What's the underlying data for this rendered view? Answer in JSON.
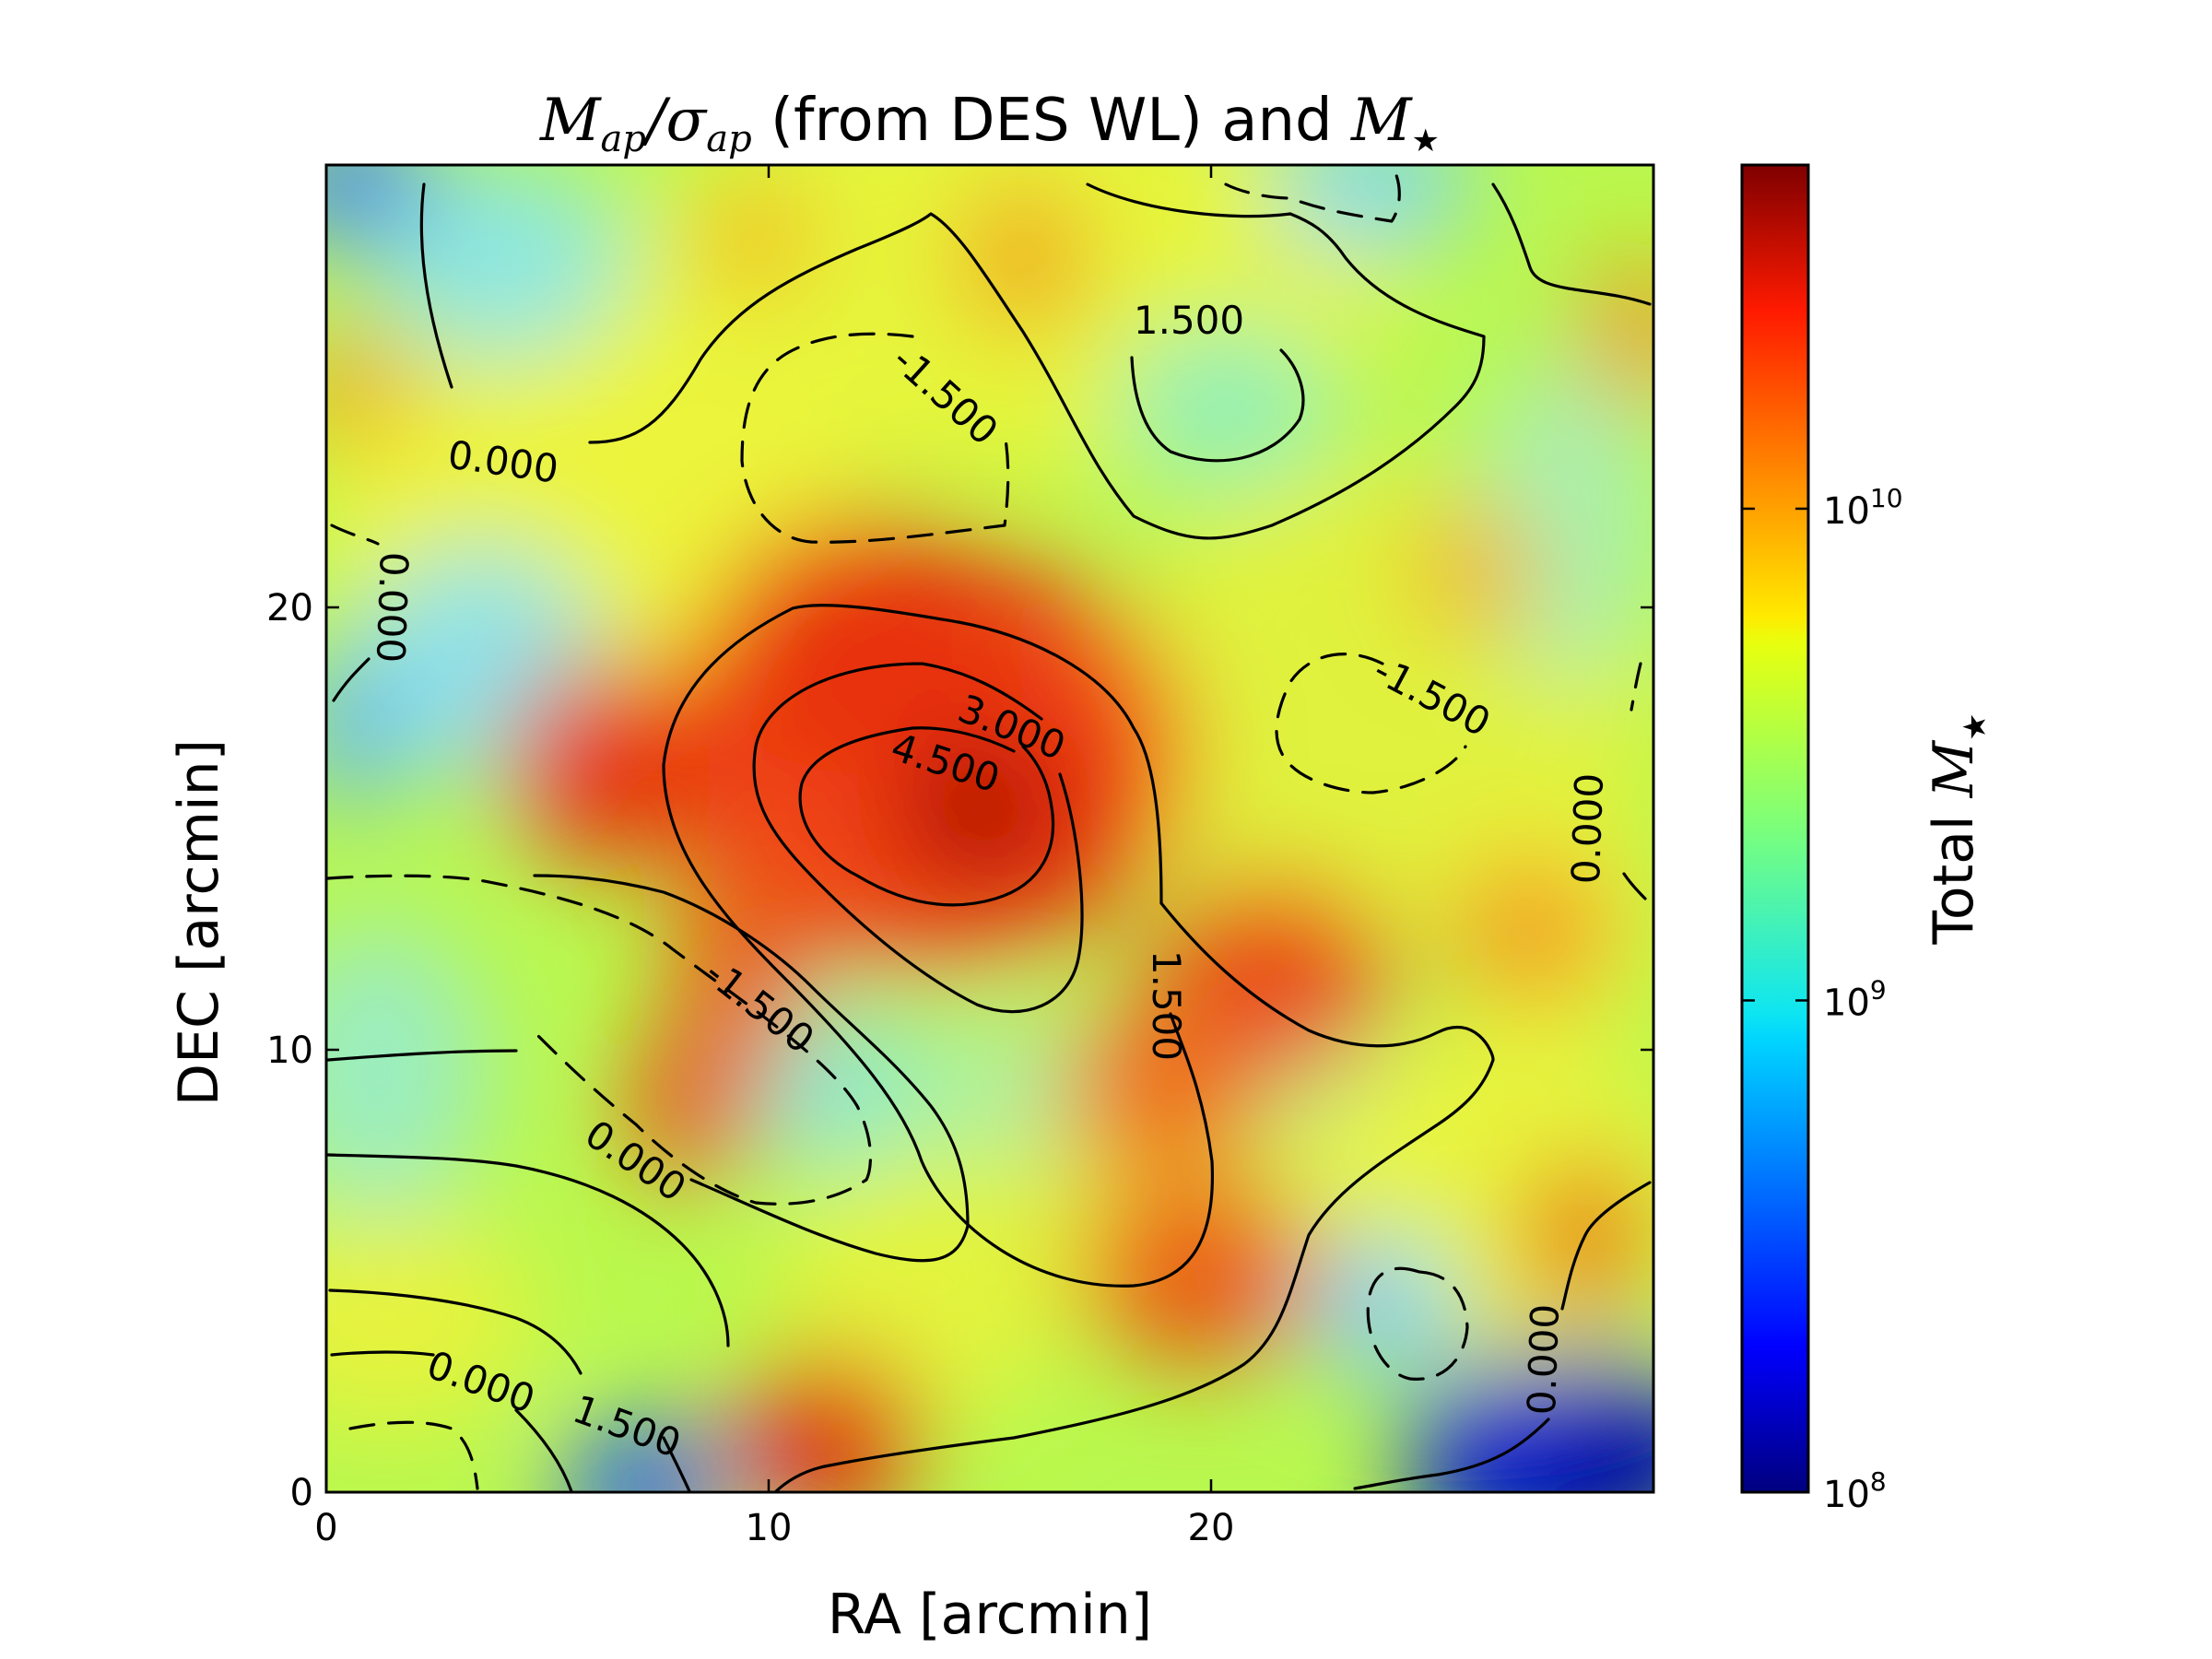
{
  "chart_data": {
    "type": "heatmap",
    "title": {
      "math_prefix_main": "M",
      "math_prefix_sub": "ap",
      "slash": "/",
      "sigma": "σ",
      "sigma_sub": "ap",
      "text": " (from DES WL) and ",
      "math_suffix_main": "M",
      "math_suffix_sub": "★"
    },
    "xlabel": "RA [arcmin]",
    "ylabel": "DEC [arcmin]",
    "xlim": [
      0,
      30
    ],
    "ylim": [
      0,
      30
    ],
    "xticks": [
      0,
      10,
      20
    ],
    "yticks": [
      0,
      10,
      20
    ],
    "colorbar": {
      "label_text": "Total ",
      "label_math_main": "M",
      "label_math_sub": "★",
      "scale": "log",
      "range": [
        100000000,
        50000000000
      ],
      "ticks": [
        {
          "value": 100000000,
          "base": "10",
          "exp": "8"
        },
        {
          "value": 1000000000,
          "base": "10",
          "exp": "9"
        },
        {
          "value": 10000000000,
          "base": "10",
          "exp": "10"
        }
      ],
      "colormap": "jet"
    },
    "heatmap_peaks": [
      {
        "ra": 14.5,
        "dec": 14.8,
        "mstar": 40000000000
      },
      {
        "ra": 12.5,
        "dec": 19.0,
        "mstar": 20000000000
      },
      {
        "ra": 7.0,
        "dec": 16.5,
        "mstar": 20000000000
      },
      {
        "ra": 11.5,
        "dec": 0.5,
        "mstar": 30000000000
      },
      {
        "ra": 22.0,
        "dec": 11.0,
        "mstar": 18000000000
      },
      {
        "ra": 20.0,
        "dec": 4.5,
        "mstar": 15000000000
      },
      {
        "ra": 8.5,
        "dec": 10.0,
        "mstar": 14000000000
      },
      {
        "ra": 29.5,
        "dec": 26.0,
        "mstar": 9000000000
      },
      {
        "ra": 1.0,
        "dec": 24.5,
        "mstar": 8000000000
      },
      {
        "ra": 28.0,
        "dec": 0.5,
        "mstar": 150000000
      },
      {
        "ra": 6.5,
        "dec": 0.3,
        "mstar": 500000000
      },
      {
        "ra": 0.2,
        "dec": 29.5,
        "mstar": 500000000
      }
    ],
    "contour_levels": [
      -1.5,
      0.0,
      1.5,
      3.0,
      4.5
    ],
    "contour_labels": [
      {
        "text": "0.000",
        "ra": 4.0,
        "dec": 23.3,
        "angle": 8
      },
      {
        "text": "0.000",
        "ra": 1.5,
        "dec": 20.0,
        "angle": 92
      },
      {
        "text": "-1.500",
        "ra": 14.0,
        "dec": 24.8,
        "angle": 42
      },
      {
        "text": "1.500",
        "ra": 19.5,
        "dec": 26.5,
        "angle": 0
      },
      {
        "text": "-1.500",
        "ra": 25.0,
        "dec": 18.0,
        "angle": 28
      },
      {
        "text": "0.000",
        "ra": 28.5,
        "dec": 15.0,
        "angle": -88
      },
      {
        "text": "3.000",
        "ra": 15.5,
        "dec": 17.3,
        "angle": 22
      },
      {
        "text": "4.500",
        "ra": 14.0,
        "dec": 16.5,
        "angle": 18
      },
      {
        "text": "1.500",
        "ra": 19.0,
        "dec": 11.0,
        "angle": 90
      },
      {
        "text": "-1.500",
        "ra": 9.8,
        "dec": 11.0,
        "angle": 38
      },
      {
        "text": "0.000",
        "ra": 7.0,
        "dec": 7.5,
        "angle": 34
      },
      {
        "text": "0.000",
        "ra": 3.5,
        "dec": 2.5,
        "angle": 20
      },
      {
        "text": "1.500",
        "ra": 6.8,
        "dec": 1.5,
        "angle": 20
      },
      {
        "text": "0.000",
        "ra": 27.5,
        "dec": 3.0,
        "angle": -88
      }
    ],
    "grid": false
  }
}
